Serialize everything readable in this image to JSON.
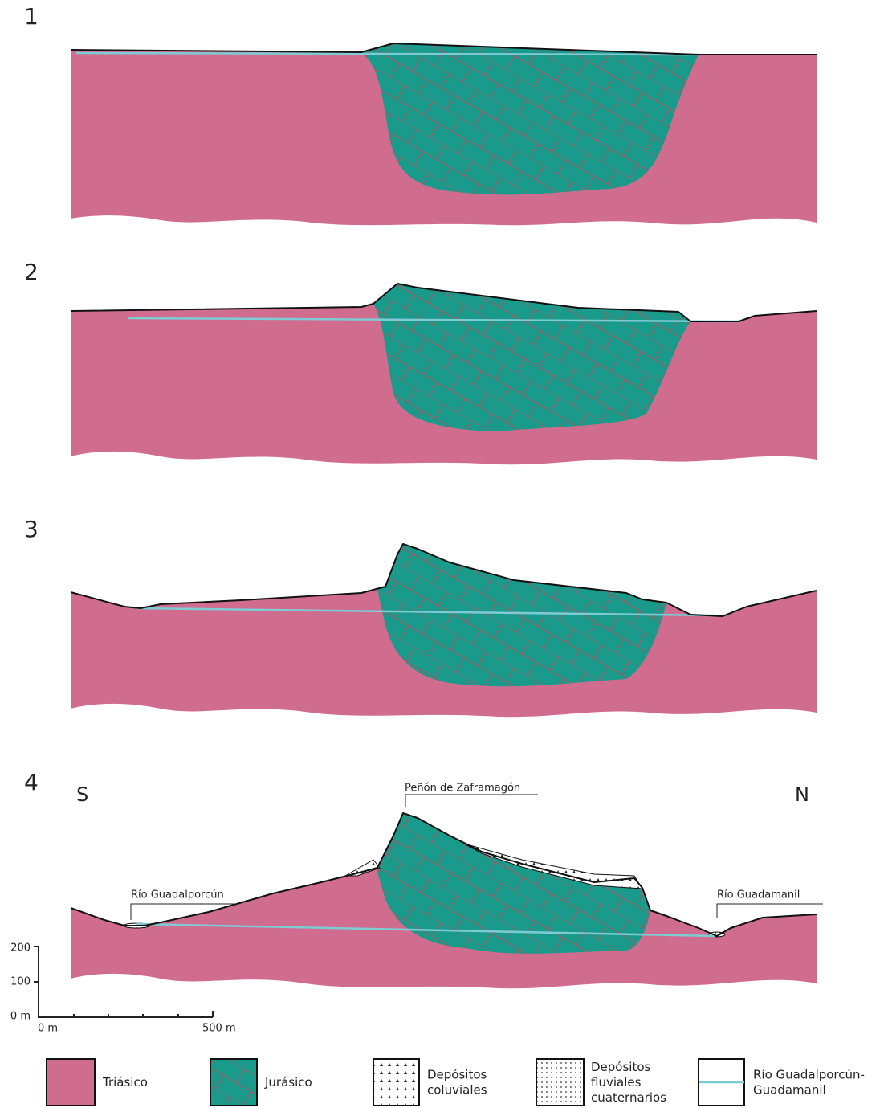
{
  "panels": [
    {
      "label": "1"
    },
    {
      "label": "2"
    },
    {
      "label": "3"
    },
    {
      "label": "4"
    }
  ],
  "orientation": {
    "south": "S",
    "north": "N"
  },
  "annotations": {
    "peak": "Peñón de Zaframagón",
    "river_south": "Río Guadalporcún",
    "river_north": "Río Guadamanil"
  },
  "scale": {
    "vertical": [
      "200",
      "100",
      "0 m"
    ],
    "horizontal": [
      "0 m",
      "500 m"
    ]
  },
  "legend": [
    {
      "lines": [
        "Triásico"
      ]
    },
    {
      "lines": [
        "Jurásico"
      ]
    },
    {
      "lines": [
        "Depósitos",
        "coluviales"
      ]
    },
    {
      "lines": [
        "Depósitos",
        "fluviales",
        "cuaternarios"
      ]
    },
    {
      "lines": [
        "Río Guadalporcún-",
        "Guadamanil"
      ]
    }
  ]
}
